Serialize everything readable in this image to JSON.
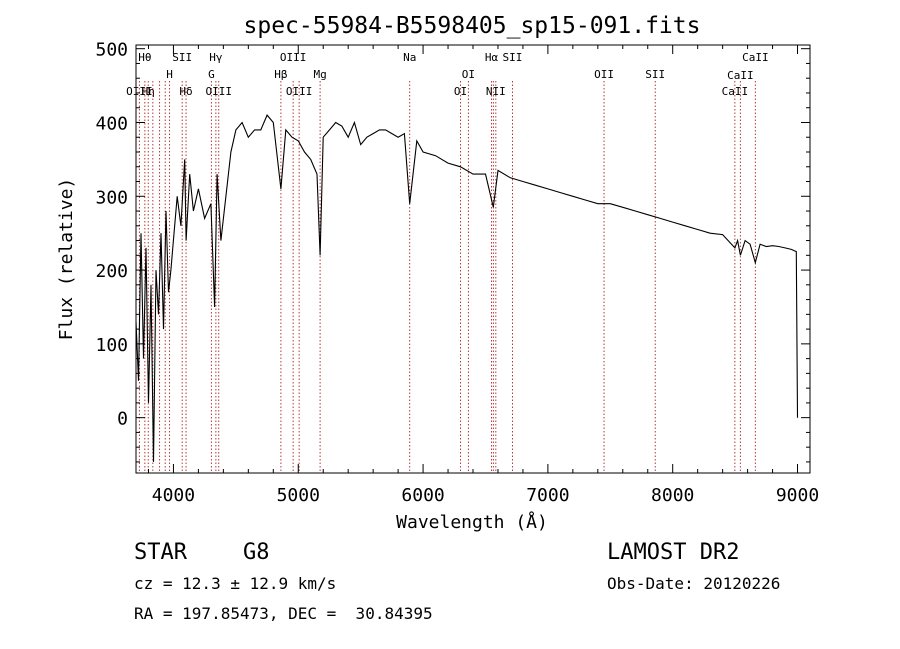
{
  "chart_data": {
    "type": "line",
    "title": "spec-55984-B5598405_sp15-091.fits",
    "xlabel": "Wavelength (Å)",
    "ylabel": "Flux (relative)",
    "xlim": [
      3700,
      9100
    ],
    "ylim": [
      -75,
      505
    ],
    "xticks": [
      4000,
      5000,
      6000,
      7000,
      8000,
      9000
    ],
    "yticks": [
      0,
      100,
      200,
      300,
      400,
      500
    ],
    "grid": false,
    "series": [
      {
        "x": [
          3700,
          3720,
          3740,
          3760,
          3780,
          3800,
          3820,
          3840,
          3860,
          3880,
          3900,
          3920,
          3940,
          3960,
          3980,
          4000,
          4030,
          4060,
          4090,
          4101,
          4130,
          4160,
          4200,
          4250,
          4300,
          4330,
          4350,
          4380,
          4420,
          4460,
          4500,
          4550,
          4600,
          4650,
          4700,
          4750,
          4800,
          4861,
          4900,
          4950,
          5000,
          5050,
          5100,
          5150,
          5175,
          5200,
          5250,
          5300,
          5350,
          5400,
          5450,
          5500,
          5550,
          5600,
          5650,
          5700,
          5750,
          5800,
          5850,
          5893,
          5950,
          6000,
          6100,
          6200,
          6300,
          6400,
          6500,
          6563,
          6600,
          6700,
          6800,
          6900,
          7000,
          7100,
          7200,
          7300,
          7400,
          7500,
          7600,
          7700,
          7800,
          7900,
          8000,
          8100,
          8200,
          8300,
          8400,
          8498,
          8520,
          8542,
          8580,
          8620,
          8662,
          8700,
          8750,
          8800,
          8850,
          8900,
          8950,
          8990,
          9000
        ],
        "values": [
          130,
          50,
          250,
          80,
          230,
          20,
          180,
          -60,
          200,
          140,
          250,
          120,
          280,
          170,
          200,
          240,
          300,
          260,
          350,
          240,
          330,
          280,
          310,
          270,
          290,
          150,
          330,
          240,
          300,
          360,
          390,
          400,
          380,
          390,
          390,
          410,
          400,
          310,
          390,
          380,
          375,
          360,
          350,
          330,
          220,
          380,
          390,
          400,
          395,
          380,
          400,
          370,
          380,
          385,
          390,
          390,
          385,
          380,
          385,
          290,
          375,
          360,
          355,
          345,
          340,
          330,
          330,
          285,
          335,
          325,
          320,
          315,
          310,
          305,
          300,
          295,
          290,
          290,
          285,
          280,
          275,
          270,
          265,
          260,
          255,
          250,
          248,
          230,
          240,
          220,
          240,
          235,
          210,
          235,
          232,
          233,
          232,
          230,
          228,
          225,
          0
        ]
      }
    ],
    "lines": [
      {
        "x": 3771,
        "label": "Hθ",
        "tier": 1
      },
      {
        "x": 3798,
        "label": "Hη",
        "tier": 4
      },
      {
        "x": 3727,
        "label": "OIII",
        "tier": 4
      },
      {
        "x": 3835,
        "label": "",
        "tier": 0
      },
      {
        "x": 3889,
        "label": "",
        "tier": 0
      },
      {
        "x": 3934,
        "label": "",
        "tier": 0
      },
      {
        "x": 3969,
        "label": "H",
        "tier": 2
      },
      {
        "x": 4070,
        "label": "SII",
        "tier": 1
      },
      {
        "x": 4101,
        "label": "Hδ",
        "tier": 4
      },
      {
        "x": 4304,
        "label": "G",
        "tier": 2
      },
      {
        "x": 4340,
        "label": "Hγ",
        "tier": 1
      },
      {
        "x": 4363,
        "label": "OIII",
        "tier": 4
      },
      {
        "x": 4861,
        "label": "Hβ",
        "tier": 2
      },
      {
        "x": 4959,
        "label": "OIII",
        "tier": 1
      },
      {
        "x": 5007,
        "label": "OIII",
        "tier": 4
      },
      {
        "x": 5175,
        "label": "Mg",
        "tier": 2
      },
      {
        "x": 5893,
        "label": "Na",
        "tier": 1
      },
      {
        "x": 6300,
        "label": "OI",
        "tier": 4
      },
      {
        "x": 6363,
        "label": "OI",
        "tier": 2
      },
      {
        "x": 6548,
        "label": "Hα",
        "tier": 1
      },
      {
        "x": 6563,
        "label": "",
        "tier": 0
      },
      {
        "x": 6583,
        "label": "NII",
        "tier": 4
      },
      {
        "x": 6716,
        "label": "SII",
        "tier": 1
      },
      {
        "x": 7450,
        "label": "OII",
        "tier": 2
      },
      {
        "x": 7860,
        "label": "SII",
        "tier": 2
      },
      {
        "x": 8498,
        "label": "CaII",
        "tier": 4
      },
      {
        "x": 8542,
        "label": "CaII",
        "tier": 3
      },
      {
        "x": 8662,
        "label": "CaII",
        "tier": 1
      }
    ]
  },
  "footer": {
    "object_class": "STAR",
    "subclass": "G8",
    "survey": "LAMOST DR2",
    "redshift": "cz = 12.3 ± 12.9 km/s",
    "obs_date": "Obs-Date: 20120226",
    "coords": "RA = 197.85473, DEC =  30.84395"
  },
  "colors": {
    "line": "#000000",
    "marker_lines": "#b22222",
    "background": "#ffffff"
  }
}
